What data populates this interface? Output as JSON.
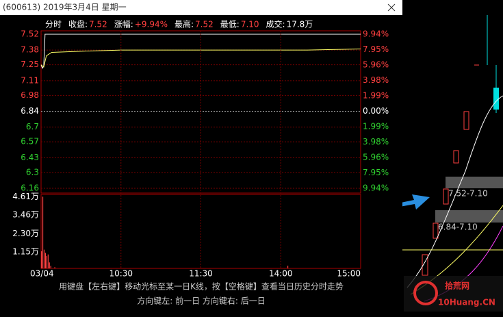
{
  "window": {
    "title": "(600613) 2019年3月4日 星期一"
  },
  "info": {
    "mode": "分时",
    "items": [
      {
        "label": "收盘:",
        "value": "7.52"
      },
      {
        "label": "涨幅:",
        "value": "+9.94%"
      },
      {
        "label": "最高:",
        "value": "7.52"
      },
      {
        "label": "最低:",
        "value": "7.10"
      },
      {
        "label": "成交:",
        "value": "17.8万"
      }
    ]
  },
  "chart_data": [
    {
      "type": "line",
      "xlim": [
        0,
        240
      ],
      "ylim": [
        6.16,
        7.52
      ],
      "yticks": [
        7.52,
        7.38,
        7.25,
        7.11,
        6.98,
        6.84,
        6.7,
        6.57,
        6.43,
        6.3,
        6.16
      ],
      "y2lim": [
        -9.94,
        9.94
      ],
      "y2ticks": [
        {
          "value": 9.94,
          "label": "9.94%"
        },
        {
          "value": 7.95,
          "label": "7.95%"
        },
        {
          "value": 5.96,
          "label": "5.96%"
        },
        {
          "value": 3.98,
          "label": "3.98%"
        },
        {
          "value": 1.99,
          "label": "1.99%"
        },
        {
          "value": 0,
          "label": "0.00%"
        },
        {
          "value": -1.99,
          "label": "1.99%"
        },
        {
          "value": -3.98,
          "label": "3.98%"
        },
        {
          "value": -5.96,
          "label": "5.96%"
        },
        {
          "value": -7.95,
          "label": "7.95%"
        },
        {
          "value": -9.94,
          "label": "9.94%"
        }
      ],
      "grid": true,
      "series": [
        {
          "color": "#ffffff",
          "x": [
            0,
            1,
            2,
            3,
            240
          ],
          "values": [
            7.25,
            7.22,
            7.24,
            7.52,
            7.52
          ]
        },
        {
          "color": "#ffff66",
          "x": [
            0,
            2,
            4,
            8,
            30,
            60,
            200,
            240
          ],
          "values": [
            7.25,
            7.23,
            7.33,
            7.36,
            7.37,
            7.38,
            7.38,
            7.39
          ]
        }
      ]
    },
    {
      "type": "bar",
      "xlim": [
        0,
        240
      ],
      "ylim": [
        0,
        4.75
      ],
      "color": "#ff4040",
      "yticks": [
        {
          "value": 4.61,
          "label": "4.61万"
        },
        {
          "value": 3.46,
          "label": "3.46万"
        },
        {
          "value": 2.3,
          "label": "2.30万"
        },
        {
          "value": 1.15,
          "label": "1.15万"
        }
      ],
      "xticks": [
        {
          "value": 0,
          "label": "03/04"
        },
        {
          "value": 60,
          "label": "10:30"
        },
        {
          "value": 120,
          "label": "11:30"
        },
        {
          "value": 180,
          "label": "14:00"
        },
        {
          "value": 240,
          "label": "15:00"
        }
      ],
      "x": [
        0,
        1,
        2,
        3,
        4,
        5,
        6,
        7,
        10,
        15,
        185
      ],
      "values": [
        1.2,
        4.61,
        1.3,
        1.1,
        0.9,
        1.0,
        0.5,
        0.3,
        0.2,
        0.1,
        0.3
      ]
    }
  ],
  "hint": {
    "line1": "用键盘【左右键】移动光标至某一日K线，按【空格键】查看当日历史分时走势",
    "line2": "方向键左: 前一日    方向键右: 后一日"
  },
  "background": {
    "labels": [
      "7.52-7.10",
      "6.84-7.10"
    ],
    "logo": [
      "拾荒网",
      "10Huang.CN"
    ]
  }
}
